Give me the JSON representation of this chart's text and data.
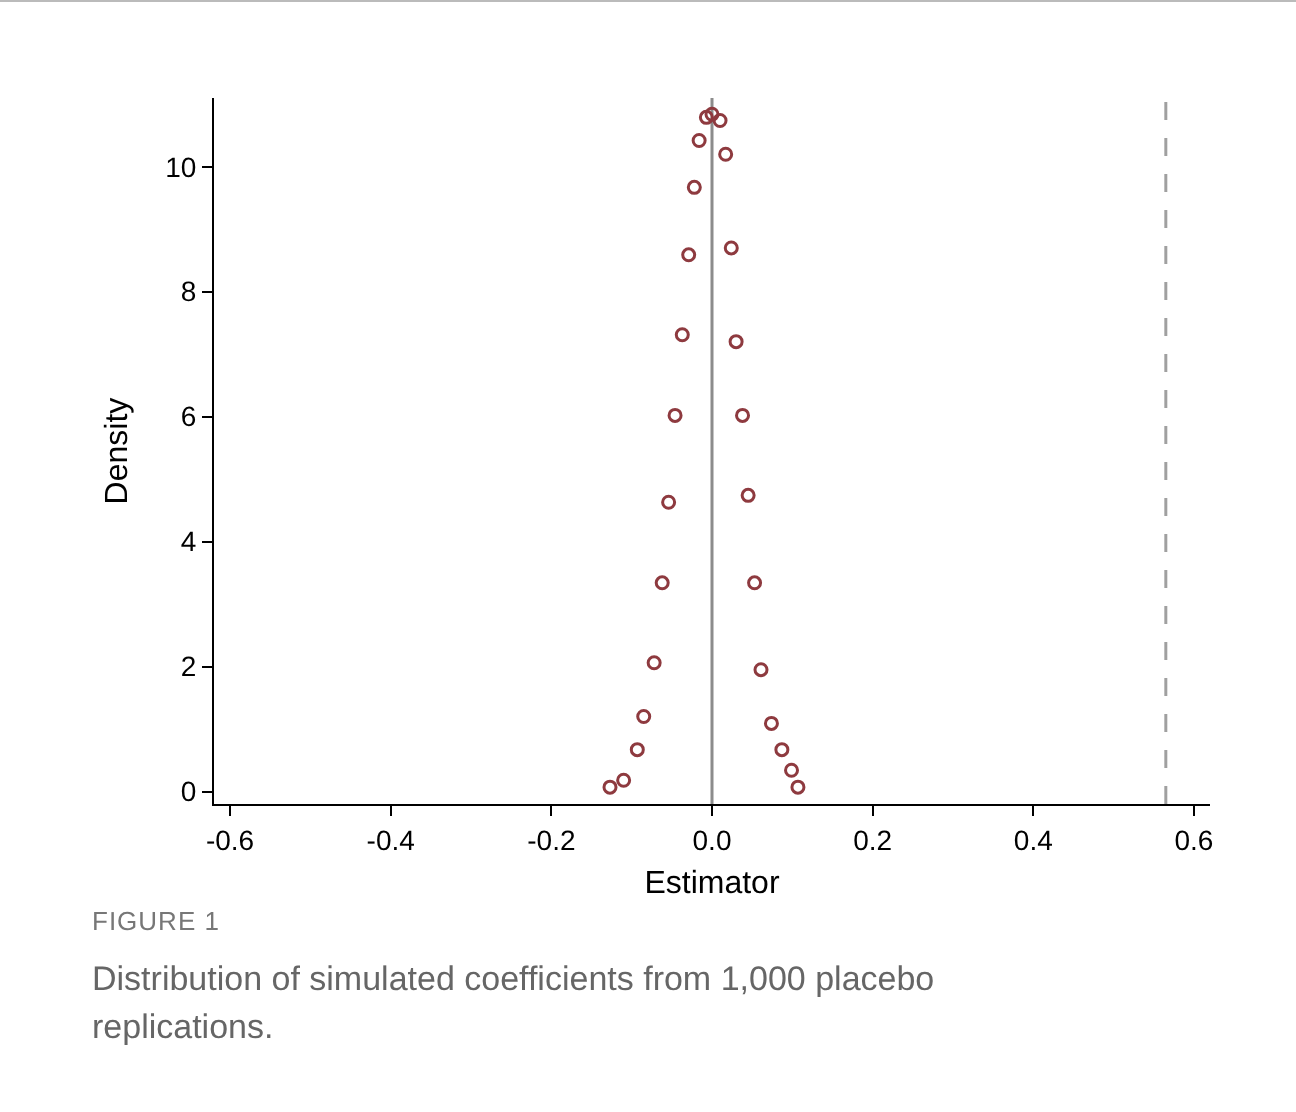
{
  "chart_data": {
    "type": "scatter",
    "xlabel": "Estimator",
    "ylabel": "Density",
    "annotations": [
      "FIGURE 1",
      "Distribution of simulated coefficients from 1,000 placebo replications."
    ],
    "x": [
      -0.127,
      -0.11,
      -0.093,
      -0.085,
      -0.072,
      -0.062,
      -0.054,
      -0.046,
      -0.037,
      -0.029,
      -0.022,
      -0.016,
      -0.007,
      0.0,
      0.01,
      0.017,
      0.024,
      0.03,
      0.038,
      0.045,
      0.053,
      0.061,
      0.074,
      0.087,
      0.099,
      0.107
    ],
    "series": [
      {
        "color": "#8e3a3f",
        "values": [
          0.07,
          0.18,
          0.67,
          1.2,
          2.06,
          3.34,
          4.63,
          6.02,
          7.31,
          8.59,
          9.67,
          10.42,
          10.79,
          10.84,
          10.74,
          10.2,
          8.7,
          7.2,
          6.02,
          4.74,
          3.34,
          1.95,
          1.09,
          0.67,
          0.34,
          0.07
        ]
      }
    ],
    "marker": "circle",
    "grid": false,
    "xlim": [
      -0.62,
      0.62
    ],
    "xticks": [
      -0.6,
      -0.4,
      -0.2,
      {
        "value": 0,
        "label": "0.0"
      },
      0.2,
      0.4,
      0.6
    ],
    "ylim": [
      -0.2,
      11.1
    ],
    "yticks": [
      0,
      2,
      4,
      6,
      8,
      10
    ],
    "ref_lines": [
      {
        "axis": "x",
        "value": 0,
        "color": "#8c8c8c",
        "line_style": "solid"
      },
      {
        "axis": "x",
        "value": 0.565,
        "color": "#a0a0a0",
        "line_style": "dashed"
      }
    ]
  }
}
